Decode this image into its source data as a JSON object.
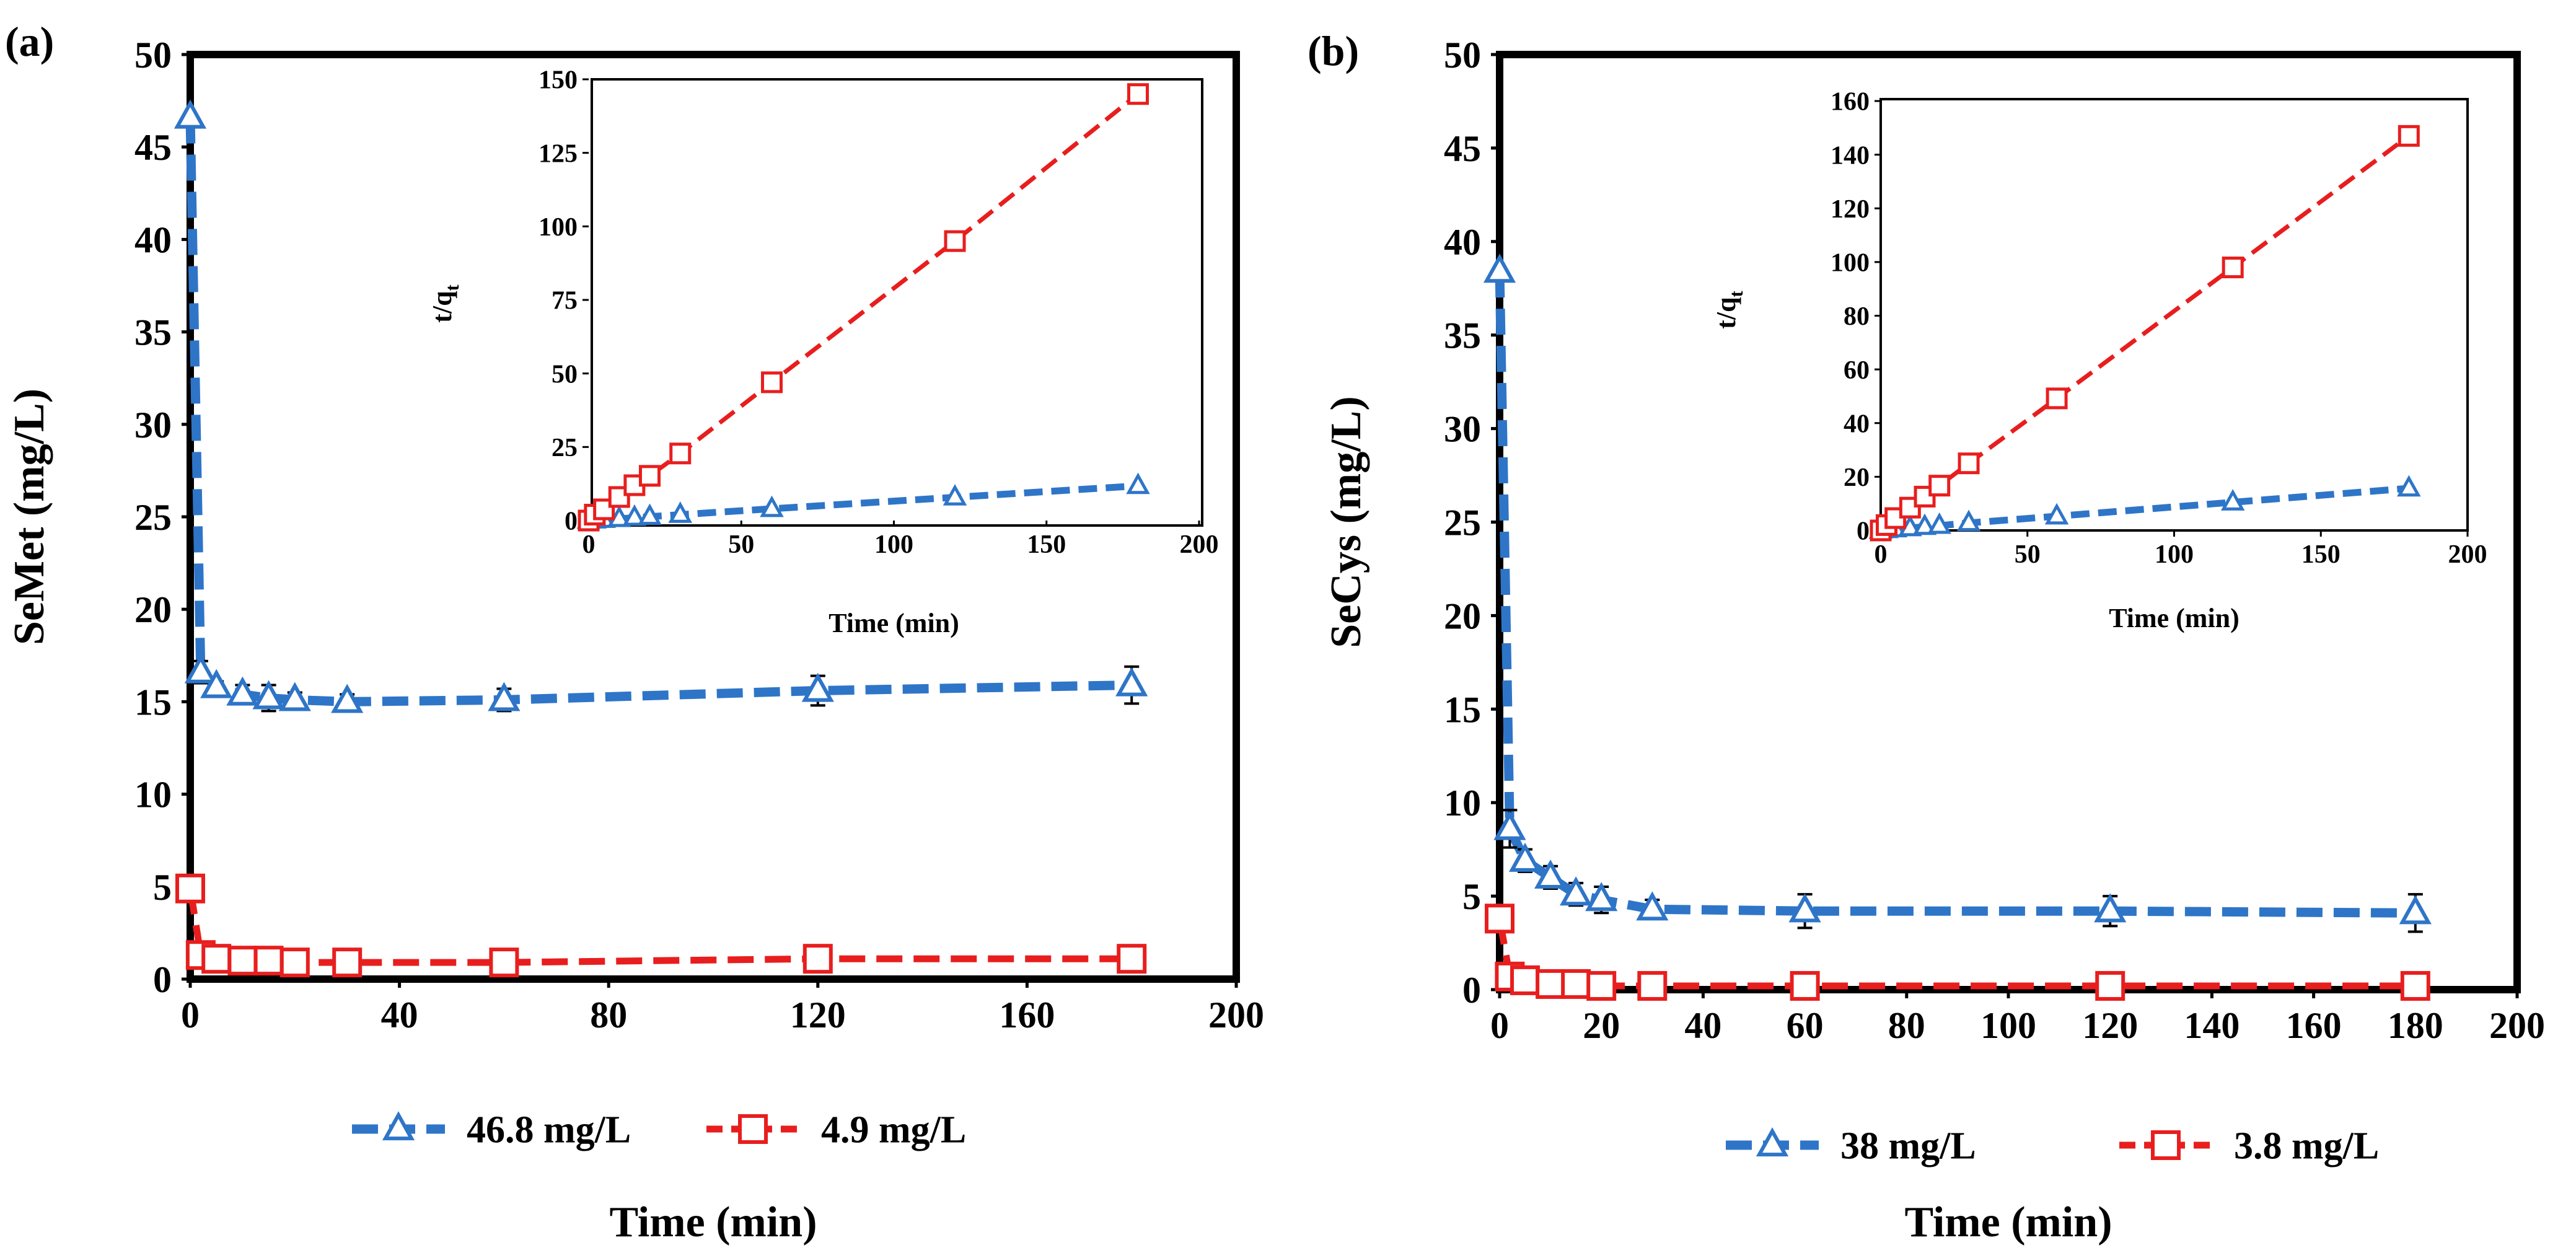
{
  "colors": {
    "blue": "#2E75C8",
    "red": "#E81E1E",
    "black": "#000000"
  },
  "chart_data": [
    {
      "panel_label": "(a)",
      "type": "line",
      "xlabel": "Time (min)",
      "ylabel": "SeMet (mg/L)",
      "xlim": [
        0,
        200
      ],
      "ylim": [
        0,
        50
      ],
      "xticks": [
        "0",
        "40",
        "80",
        "120",
        "160",
        "200"
      ],
      "yticks": [
        "0",
        "5",
        "10",
        "15",
        "20",
        "25",
        "30",
        "35",
        "40",
        "45",
        "50"
      ],
      "legend_position": "bottom",
      "series": [
        {
          "name": "46.8 mg/L",
          "color": "#2E75C8",
          "marker": "triangle",
          "x": [
            0,
            2,
            5,
            10,
            15,
            20,
            30,
            60,
            120,
            180
          ],
          "y": [
            46.6,
            16.6,
            15.8,
            15.4,
            15.2,
            15.1,
            15.0,
            15.1,
            15.6,
            15.9
          ],
          "err": [
            0,
            0.6,
            0.3,
            0.5,
            0.7,
            0.4,
            0.4,
            0.6,
            0.8,
            1.0
          ]
        },
        {
          "name": "4.9 mg/L",
          "color": "#E81E1E",
          "marker": "square",
          "x": [
            0,
            2,
            5,
            10,
            15,
            20,
            30,
            60,
            120,
            180
          ],
          "y": [
            4.9,
            1.3,
            1.1,
            1.0,
            1.0,
            0.9,
            0.9,
            0.9,
            1.1,
            1.1
          ],
          "err": [
            0,
            0.2,
            0.2,
            0.2,
            0.2,
            0.2,
            0.2,
            0.3,
            0.3,
            0.3
          ]
        }
      ],
      "inset": {
        "type": "line",
        "xlabel": "Time (min)",
        "ylabel_main": "t/q",
        "ylabel_sub": "t",
        "xlim": [
          0,
          200
        ],
        "ylim": [
          0,
          150
        ],
        "xticks": [
          "0",
          "50",
          "100",
          "150",
          "200"
        ],
        "yticks": [
          "0",
          "25",
          "50",
          "75",
          "100",
          "125",
          "150"
        ],
        "series": [
          {
            "name": "46.8 mg/L",
            "color": "#2E75C8",
            "marker": "triangle",
            "x": [
              0,
              2,
              5,
              10,
              15,
              20,
              30,
              60,
              120,
              180
            ],
            "y": [
              0,
              0.1,
              0.3,
              0.6,
              1.0,
              1.3,
              2.0,
              4.0,
              7.9,
              11.8
            ]
          },
          {
            "name": "4.9 mg/L",
            "color": "#E81E1E",
            "marker": "square",
            "x": [
              0,
              2,
              5,
              10,
              15,
              20,
              30,
              60,
              120,
              180
            ],
            "y": [
              0,
              2.0,
              3.8,
              8.0,
              12.0,
              15.2,
              22.8,
              47.0,
              95.0,
              145.0
            ]
          }
        ]
      }
    },
    {
      "panel_label": "(b)",
      "type": "line",
      "xlabel": "Time (min)",
      "ylabel": "SeCys (mg/L)",
      "xlim": [
        0,
        200
      ],
      "ylim": [
        0,
        50
      ],
      "xticks": [
        "0",
        "20",
        "40",
        "60",
        "80",
        "100",
        "120",
        "140",
        "160",
        "180",
        "200"
      ],
      "yticks": [
        "0",
        "5",
        "10",
        "15",
        "20",
        "25",
        "30",
        "35",
        "40",
        "45",
        "50"
      ],
      "legend_position": "bottom",
      "series": [
        {
          "name": "38 mg/L",
          "color": "#2E75C8",
          "marker": "triangle",
          "x": [
            0,
            2,
            5,
            10,
            15,
            20,
            30,
            60,
            120,
            180
          ],
          "y": [
            38.4,
            8.6,
            6.9,
            6.0,
            5.1,
            4.8,
            4.3,
            4.2,
            4.2,
            4.1
          ],
          "err": [
            0,
            1.0,
            0.6,
            0.6,
            0.6,
            0.7,
            0.5,
            0.9,
            0.8,
            1.0
          ]
        },
        {
          "name": "3.8 mg/L",
          "color": "#E81E1E",
          "marker": "square",
          "x": [
            0,
            2,
            5,
            10,
            15,
            20,
            30,
            60,
            120,
            180
          ],
          "y": [
            3.8,
            0.7,
            0.5,
            0.3,
            0.3,
            0.2,
            0.2,
            0.2,
            0.2,
            0.2
          ],
          "err": [
            0,
            0.2,
            0.2,
            0.2,
            0.2,
            0.3,
            0.3,
            0.6,
            0.6,
            0.7
          ]
        }
      ],
      "inset": {
        "type": "line",
        "xlabel": "Time (min)",
        "ylabel_main": "t/q",
        "ylabel_sub": "t",
        "xlim": [
          0,
          200
        ],
        "ylim": [
          0,
          160
        ],
        "xticks": [
          "0",
          "50",
          "100",
          "150",
          "200"
        ],
        "yticks": [
          "0",
          "20",
          "40",
          "60",
          "80",
          "100",
          "120",
          "140",
          "160"
        ],
        "series": [
          {
            "name": "38 mg/L",
            "color": "#2E75C8",
            "marker": "triangle",
            "x": [
              0,
              2,
              5,
              10,
              15,
              20,
              30,
              60,
              120,
              180
            ],
            "y": [
              0,
              0.2,
              0.5,
              0.9,
              1.4,
              1.8,
              2.8,
              5.3,
              10.5,
              15.7
            ]
          },
          {
            "name": "3.8 mg/L",
            "color": "#E81E1E",
            "marker": "square",
            "x": [
              0,
              2,
              5,
              10,
              15,
              20,
              30,
              60,
              120,
              180
            ],
            "y": [
              0,
              2.0,
              4.6,
              8.5,
              12.6,
              16.7,
              25.0,
              49.2,
              98.0,
              147.0
            ]
          }
        ]
      }
    }
  ]
}
